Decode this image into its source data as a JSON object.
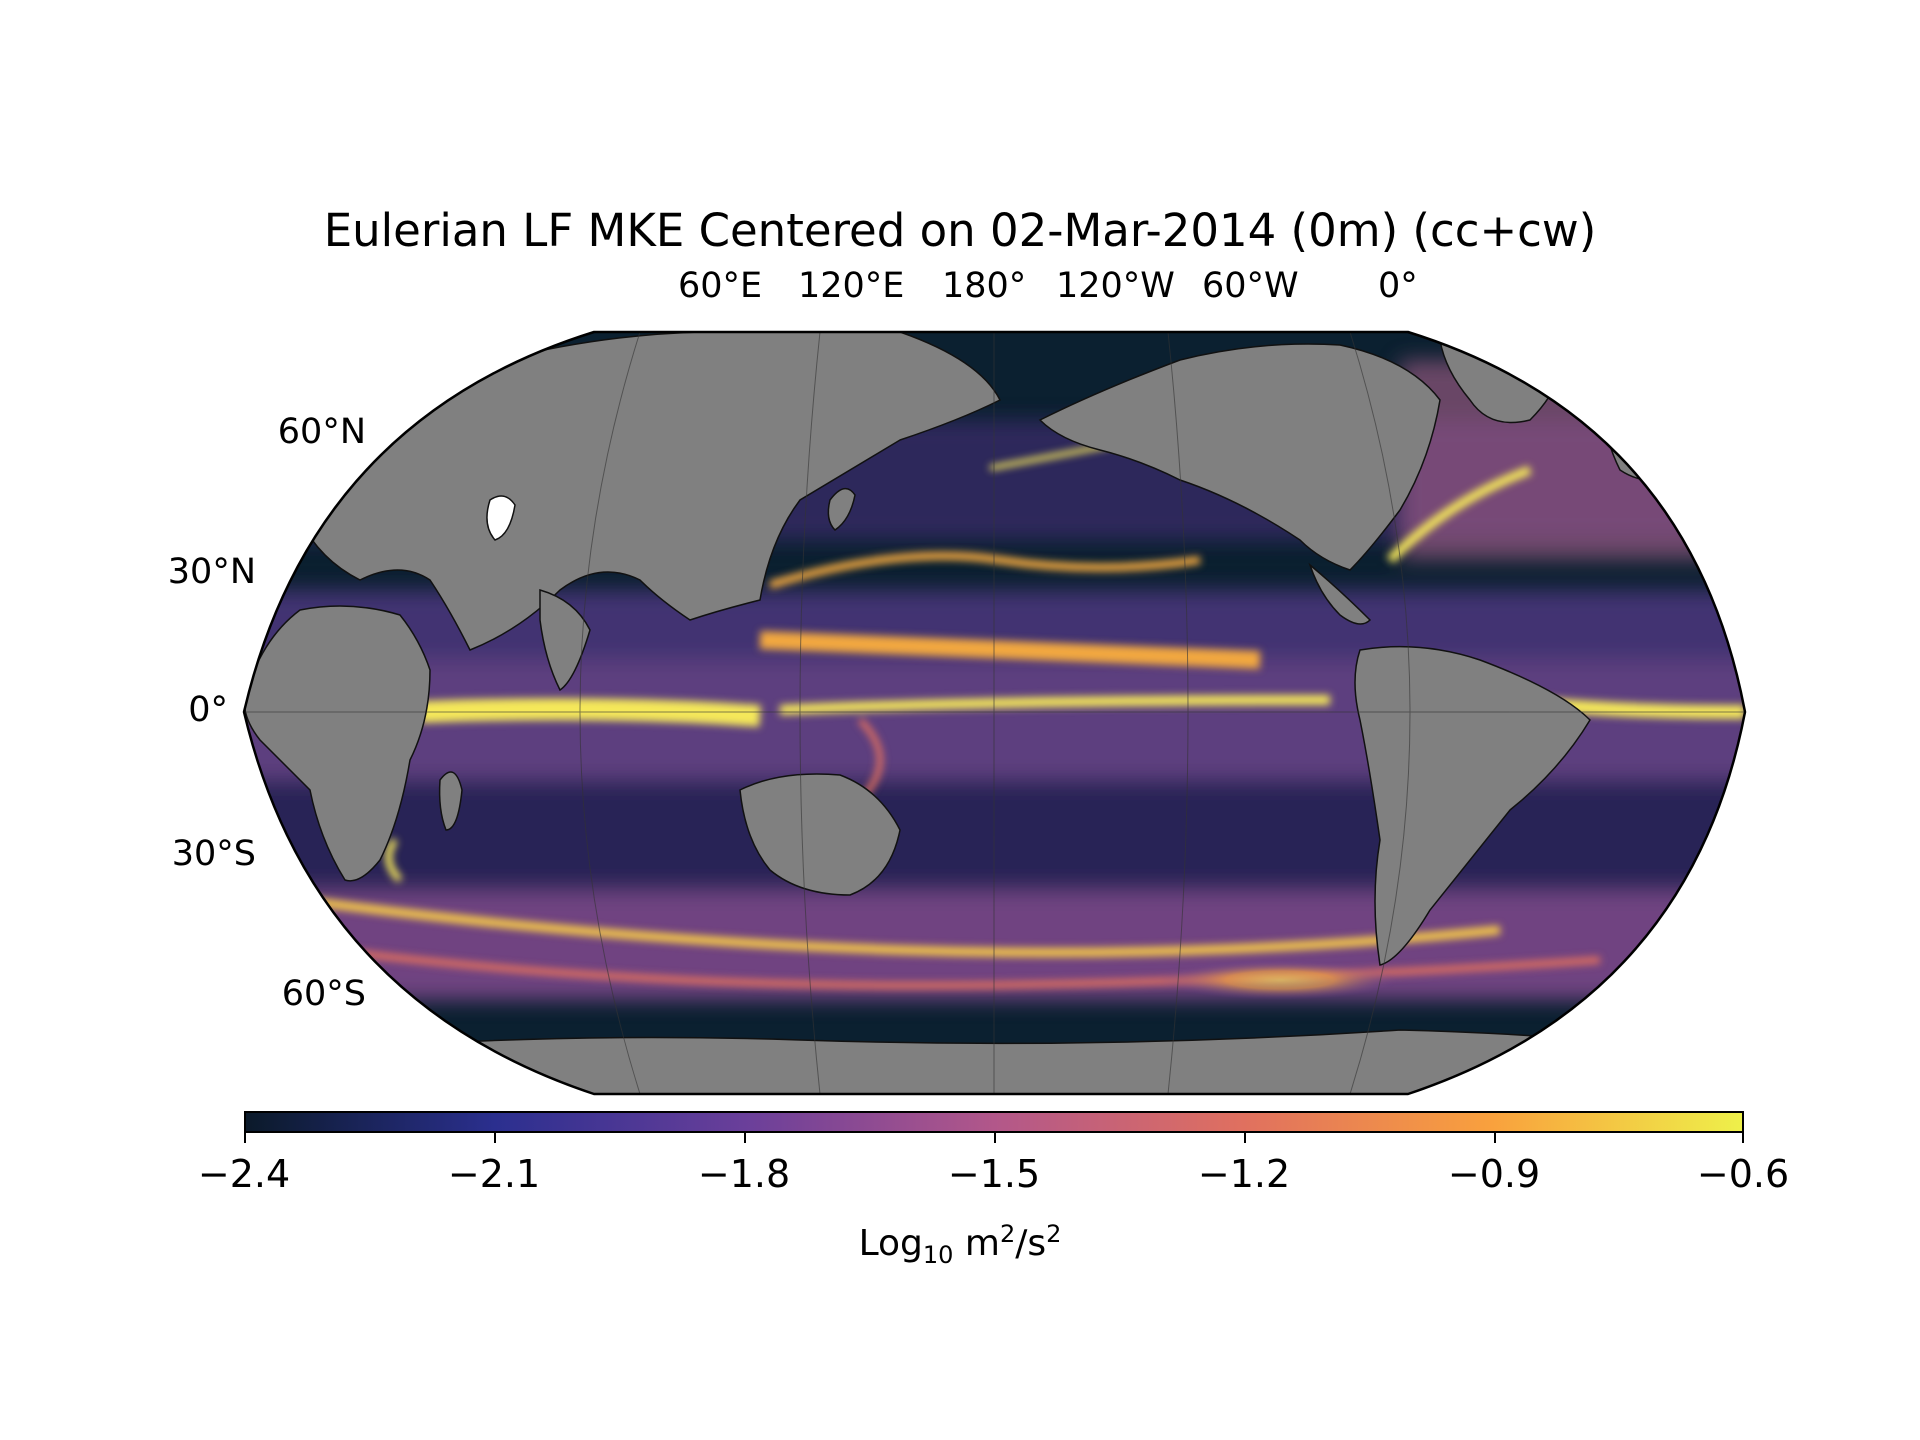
{
  "title": "Eulerian LF MKE Centered on 02-Mar-2014 (0m) (cc+cw)",
  "lon_labels": [
    "60°E",
    "120°E",
    "180°",
    "120°W",
    "60°W",
    "0°"
  ],
  "lat_labels": [
    "60°N",
    "30°N",
    "0°",
    "30°S",
    "60°S"
  ],
  "colorbar": {
    "ticks": [
      "−2.4",
      "−2.1",
      "−1.8",
      "−1.5",
      "−1.2",
      "−0.9",
      "−0.6"
    ],
    "min": -2.4,
    "max": -0.6,
    "label_prefix": "Log",
    "label_sub": "10",
    "label_units_a": " m",
    "label_sup_a": "2",
    "label_units_b": "/s",
    "label_sup_b": "2",
    "colors": [
      "#0b1a2a",
      "#2b2f8f",
      "#6a3f9a",
      "#b2578a",
      "#e0705f",
      "#f9a13d",
      "#eef04a"
    ]
  },
  "colors": {
    "land": "#808080",
    "ocean_low": "#0b2030",
    "ocean_high": "#f5e85a"
  }
}
